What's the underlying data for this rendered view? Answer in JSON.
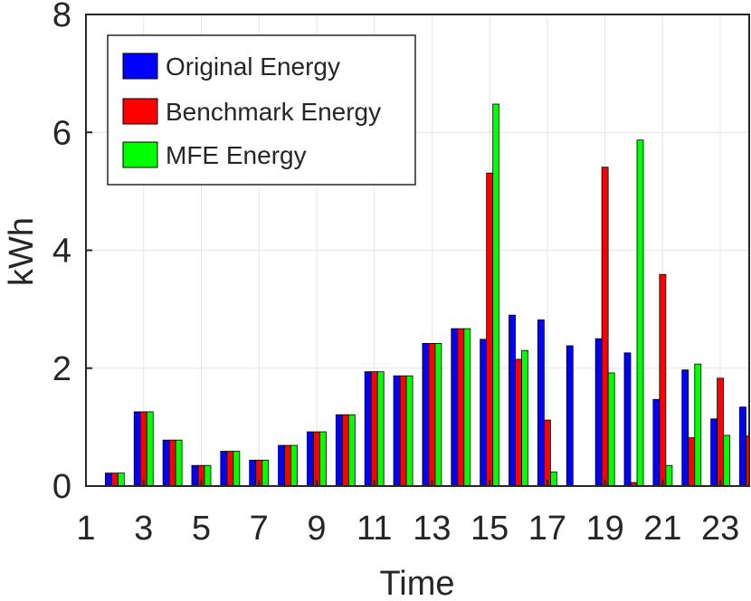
{
  "chart_data": {
    "type": "bar",
    "title": "",
    "xlabel": "Time",
    "ylabel": "kWh",
    "xlim": [
      1,
      24
    ],
    "ylim": [
      0,
      8
    ],
    "x_ticks": [
      1,
      3,
      5,
      7,
      9,
      11,
      13,
      15,
      17,
      19,
      21,
      23
    ],
    "y_ticks": [
      0,
      2,
      4,
      6,
      8
    ],
    "grid": true,
    "legend_position": "top-left",
    "x": [
      2,
      3,
      4,
      5,
      6,
      7,
      8,
      9,
      10,
      11,
      12,
      13,
      14,
      15,
      16,
      17,
      18,
      19,
      20,
      21,
      22,
      23,
      24
    ],
    "series": [
      {
        "name": "Original Energy",
        "color": "#0000ff",
        "values": [
          0.22,
          1.26,
          0.78,
          0.35,
          0.59,
          0.44,
          0.69,
          0.92,
          1.21,
          1.94,
          1.87,
          2.42,
          2.67,
          2.49,
          2.9,
          2.82,
          2.38,
          2.5,
          2.26,
          1.47,
          1.97,
          1.14,
          1.34
        ]
      },
      {
        "name": "Benchmark Energy",
        "color": "#ff0000",
        "values": [
          0.22,
          1.26,
          0.78,
          0.35,
          0.59,
          0.44,
          0.69,
          0.92,
          1.21,
          1.94,
          1.87,
          2.42,
          2.67,
          5.31,
          2.15,
          1.12,
          0.01,
          5.41,
          0.06,
          3.59,
          0.82,
          1.83,
          0.85
        ]
      },
      {
        "name": "MFE Energy",
        "color": "#00ff00",
        "values": [
          0.22,
          1.26,
          0.78,
          0.35,
          0.59,
          0.44,
          0.69,
          0.92,
          1.21,
          1.94,
          1.87,
          2.42,
          2.67,
          6.48,
          2.3,
          0.24,
          0.0,
          1.92,
          5.87,
          0.35,
          2.07,
          0.86,
          0.0
        ]
      }
    ]
  }
}
